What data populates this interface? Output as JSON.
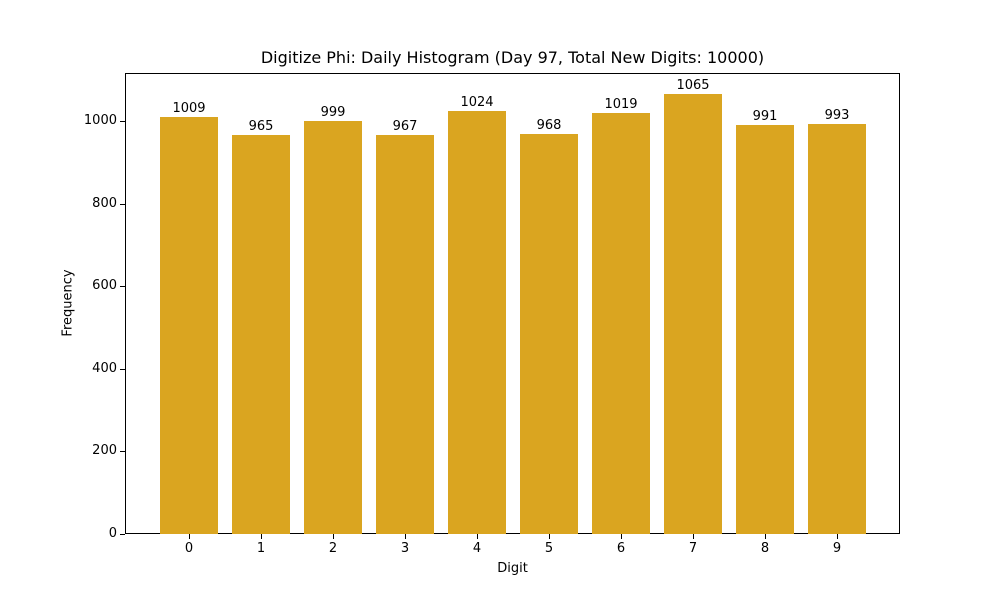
{
  "chart_data": {
    "type": "bar",
    "title": "Digitize Phi: Daily Histogram (Day 97, Total New Digits: 10000)",
    "xlabel": "Digit",
    "ylabel": "Frequency",
    "categories": [
      "0",
      "1",
      "2",
      "3",
      "4",
      "5",
      "6",
      "7",
      "8",
      "9"
    ],
    "values": [
      1009,
      965,
      999,
      967,
      1024,
      968,
      1019,
      1065,
      991,
      993
    ],
    "yticks": [
      0,
      200,
      400,
      600,
      800,
      1000
    ],
    "ylim": [
      0,
      1118
    ],
    "bar_color": "#daa520",
    "grid": false,
    "legend": null
  }
}
